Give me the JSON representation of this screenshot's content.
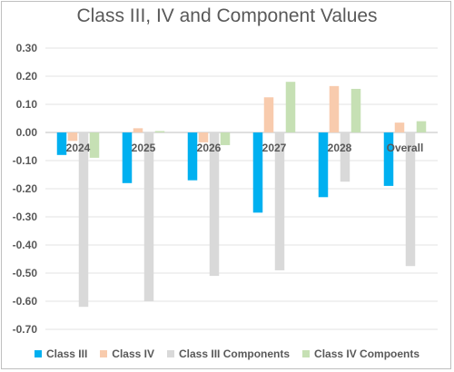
{
  "chart_data": {
    "type": "bar",
    "title": "Class III, IV and Component Values",
    "xlabel": "",
    "ylabel": "",
    "categories": [
      "2024",
      "2025",
      "2026",
      "2027",
      "2028",
      "Overall"
    ],
    "ylim": [
      -0.7,
      0.3
    ],
    "yticks": [
      "0.30",
      "0.20",
      "0.10",
      "0.00",
      "-0.10",
      "-0.20",
      "-0.30",
      "-0.40",
      "-0.50",
      "-0.60",
      "-0.70"
    ],
    "grid": true,
    "legend_position": "bottom",
    "series": [
      {
        "name": "Class III",
        "color": "#00b0f0",
        "values": [
          -0.08,
          -0.18,
          -0.17,
          -0.285,
          -0.23,
          -0.19
        ]
      },
      {
        "name": "Class IV",
        "color": "#f8cbad",
        "values": [
          -0.03,
          0.015,
          -0.035,
          0.125,
          0.165,
          0.035
        ]
      },
      {
        "name": "Class III Components",
        "color": "#d9d9d9",
        "values": [
          -0.62,
          -0.6,
          -0.51,
          -0.49,
          -0.175,
          -0.475
        ]
      },
      {
        "name": "Class IV Compoents",
        "color": "#c6e0b4",
        "values": [
          -0.09,
          0.005,
          -0.045,
          0.18,
          0.155,
          0.04
        ]
      }
    ]
  }
}
